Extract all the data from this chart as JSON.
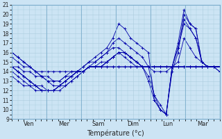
{
  "xlabel": "Température (°c)",
  "bg_color": "#cce4f4",
  "grid_color": "#aaccdd",
  "line_color": "#0000aa",
  "ylim": [
    9,
    21
  ],
  "yticks": [
    9,
    10,
    11,
    12,
    13,
    14,
    15,
    16,
    17,
    18,
    19,
    20,
    21
  ],
  "day_labels": [
    "Ven",
    "Mer",
    "Sam",
    "Dim",
    "Lun",
    "Mar"
  ],
  "day_ticks": [
    0.5,
    1.5,
    2.5,
    3.5,
    4.5,
    5.5
  ],
  "day_vlines": [
    0,
    1,
    2,
    3,
    4,
    5,
    6
  ],
  "xlim": [
    0,
    6
  ],
  "series": [
    [
      15.5,
      15.0,
      14.5,
      14.5,
      14.0,
      14.0,
      14.0,
      14.0,
      14.0,
      14.0,
      14.0,
      14.0,
      14.0,
      14.5,
      14.5,
      14.5,
      14.5,
      14.5,
      14.5,
      14.5,
      14.5,
      14.5,
      14.5,
      14.5,
      14.5,
      14.5,
      14.5,
      14.5,
      14.5,
      14.5,
      14.5,
      14.5,
      14.5,
      14.5,
      14.5,
      14.5
    ],
    [
      16.0,
      15.5,
      15.0,
      14.5,
      14.0,
      13.5,
      13.0,
      12.5,
      12.5,
      13.0,
      13.5,
      14.0,
      14.5,
      15.0,
      15.5,
      16.0,
      16.5,
      17.5,
      19.0,
      18.5,
      17.5,
      17.0,
      16.5,
      16.0,
      11.0,
      10.0,
      9.5,
      14.5,
      17.0,
      20.5,
      19.0,
      18.5,
      15.0,
      14.5,
      14.5,
      14.0
    ],
    [
      14.5,
      14.0,
      13.5,
      13.0,
      12.5,
      12.0,
      12.0,
      12.0,
      12.5,
      13.0,
      13.5,
      14.0,
      14.0,
      14.5,
      15.0,
      15.5,
      16.0,
      16.5,
      16.5,
      16.0,
      15.5,
      15.0,
      14.5,
      13.0,
      11.0,
      10.0,
      9.5,
      14.5,
      16.5,
      19.0,
      18.5,
      17.5,
      15.0,
      14.5,
      14.5,
      14.5
    ],
    [
      14.5,
      14.0,
      13.5,
      13.0,
      12.5,
      12.5,
      12.0,
      12.0,
      12.0,
      12.5,
      13.0,
      13.5,
      14.0,
      14.5,
      14.5,
      14.5,
      15.0,
      15.5,
      16.0,
      16.0,
      15.5,
      15.0,
      14.5,
      14.5,
      14.5,
      14.5,
      14.5,
      14.5,
      14.5,
      14.5,
      14.5,
      14.5,
      14.5,
      14.5,
      14.5,
      14.5
    ],
    [
      14.5,
      14.5,
      14.0,
      14.0,
      13.5,
      13.5,
      13.0,
      13.0,
      13.0,
      13.5,
      13.5,
      14.0,
      14.0,
      14.5,
      14.5,
      14.5,
      14.5,
      14.5,
      14.5,
      14.5,
      14.5,
      14.5,
      14.5,
      14.5,
      14.5,
      14.5,
      14.5,
      14.5,
      14.5,
      14.5,
      14.5,
      14.5,
      14.5,
      14.5,
      14.5,
      14.5
    ],
    [
      16.0,
      15.5,
      15.0,
      14.5,
      14.0,
      13.5,
      13.5,
      13.0,
      13.0,
      13.5,
      14.0,
      14.0,
      14.5,
      15.0,
      15.0,
      15.5,
      16.0,
      17.0,
      17.5,
      17.0,
      16.5,
      16.0,
      15.5,
      14.5,
      11.5,
      10.5,
      9.5,
      14.0,
      16.0,
      20.0,
      19.0,
      18.5,
      15.0,
      14.5,
      14.5,
      14.0
    ],
    [
      14.5,
      14.0,
      13.5,
      13.0,
      12.5,
      12.0,
      12.0,
      12.0,
      12.5,
      13.0,
      13.5,
      14.0,
      14.0,
      14.5,
      14.5,
      15.0,
      15.0,
      15.5,
      16.0,
      15.5,
      15.0,
      14.5,
      14.5,
      13.5,
      11.5,
      10.0,
      9.5,
      14.5,
      16.5,
      19.5,
      18.5,
      17.5,
      15.0,
      14.5,
      14.5,
      14.5
    ],
    [
      13.5,
      13.0,
      12.5,
      12.5,
      12.0,
      12.0,
      12.0,
      12.0,
      12.5,
      12.5,
      13.0,
      13.5,
      14.0,
      14.5,
      14.5,
      14.5,
      15.0,
      15.5,
      16.0,
      16.0,
      15.5,
      15.0,
      14.5,
      14.5,
      14.0,
      14.0,
      14.0,
      14.5,
      15.0,
      17.5,
      16.5,
      15.5,
      15.0,
      14.5,
      14.5,
      14.5
    ],
    [
      14.0,
      13.5,
      13.0,
      12.5,
      12.5,
      12.0,
      12.0,
      12.0,
      12.5,
      13.0,
      13.5,
      14.0,
      14.0,
      14.5,
      14.5,
      14.5,
      15.0,
      15.5,
      16.0,
      16.0,
      15.5,
      15.0,
      14.5,
      14.5,
      14.5,
      14.5,
      14.5,
      14.5,
      14.5,
      14.5,
      14.5,
      14.5,
      14.5,
      14.5,
      14.5,
      14.5
    ]
  ]
}
